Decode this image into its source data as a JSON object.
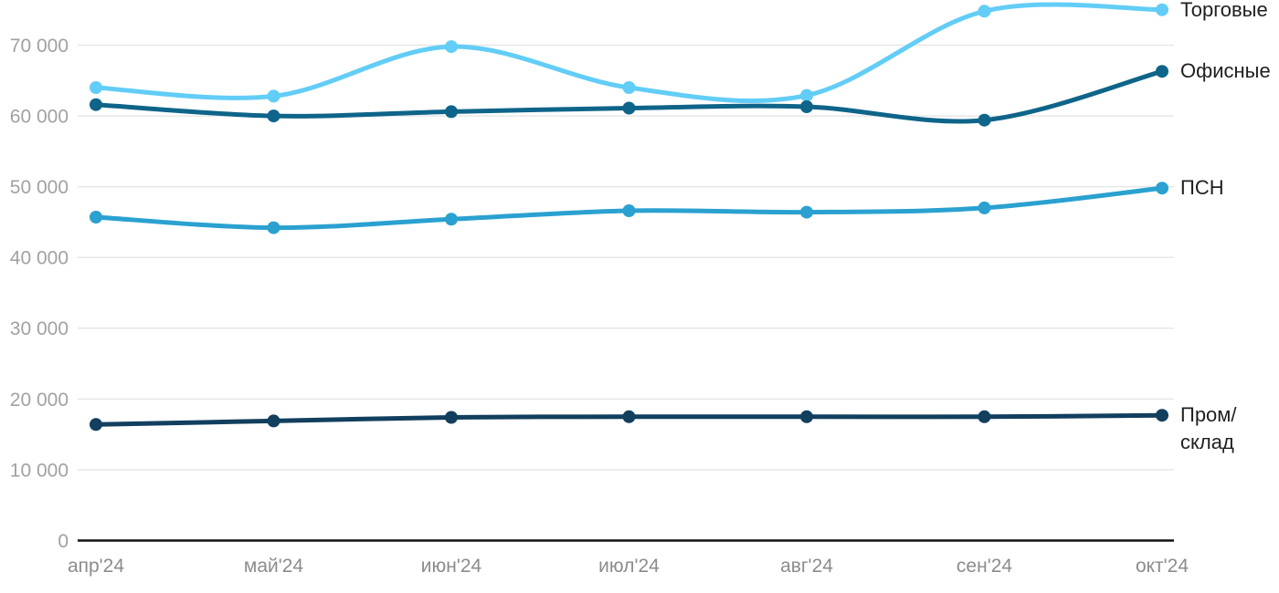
{
  "chart_data": {
    "type": "line",
    "title": "",
    "xlabel": "",
    "ylabel": "",
    "grid": true,
    "legend_position": "right",
    "categories": [
      "апр'24",
      "май'24",
      "июн'24",
      "июл'24",
      "авг'24",
      "сен'24",
      "окт'24"
    ],
    "series": [
      {
        "key": "torgovye",
        "name": "Торговые",
        "legend_label": "Торговые",
        "color": "#62cdf6",
        "values": [
          64000,
          62800,
          69800,
          64000,
          62900,
          74800,
          75000
        ]
      },
      {
        "key": "ofisnye",
        "name": "Офисные",
        "legend_label": "Офисные",
        "color": "#0e6489",
        "values": [
          61600,
          60000,
          60600,
          61100,
          61300,
          59400,
          66300
        ]
      },
      {
        "key": "psn",
        "name": "ПСН",
        "legend_label": "ПСН",
        "color": "#2aa1d0",
        "values": [
          45700,
          44200,
          45400,
          46600,
          46400,
          47000,
          49800
        ]
      },
      {
        "key": "prom-sklad",
        "name": "Пром/склад",
        "legend_label": "Пром/\nсклад",
        "color": "#123f5e",
        "values": [
          16400,
          16900,
          17400,
          17500,
          17500,
          17500,
          17700
        ]
      }
    ],
    "y_ticks": [
      0,
      10000,
      20000,
      30000,
      40000,
      50000,
      60000,
      70000
    ],
    "y_tick_labels": [
      "0",
      "10 000",
      "20 000",
      "30 000",
      "40 000",
      "50 000",
      "60 000",
      "70 000"
    ],
    "ylim": [
      0,
      76500
    ]
  },
  "colors": {
    "background": "#ffffff",
    "grid": "#e7e7e7",
    "axis": "#111111",
    "y_tick_text": "#a1a1a1",
    "x_tick_text": "#8c8c8c",
    "legend_text": "#1f1f1f"
  }
}
